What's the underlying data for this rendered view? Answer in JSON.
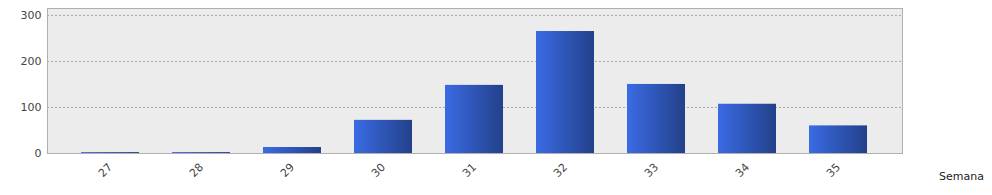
{
  "chart_data": {
    "type": "bar",
    "x_label": "Semana",
    "categories": [
      "27",
      "28",
      "29",
      "30",
      "31",
      "32",
      "33",
      "34",
      "35"
    ],
    "values": [
      2,
      2,
      13,
      72,
      148,
      265,
      150,
      107,
      60
    ],
    "color": "#2f56b8",
    "ylim": [
      0,
      315
    ],
    "yticks": [
      0,
      100,
      200,
      300
    ],
    "grid": true
  }
}
